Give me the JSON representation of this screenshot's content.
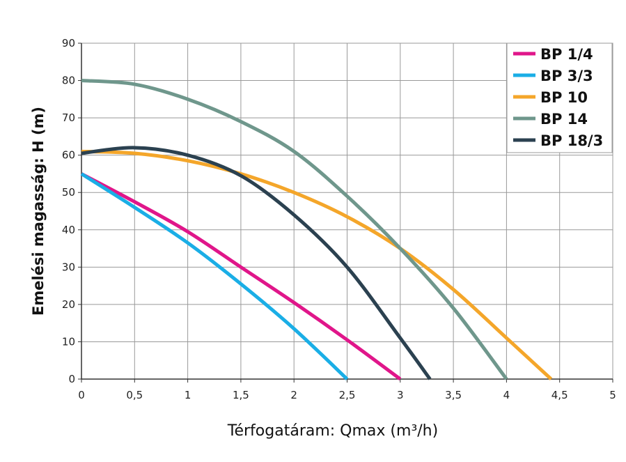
{
  "chart_data": {
    "type": "line",
    "title": "",
    "xlabel": "Térfogatáram: Qmax (m³/h)",
    "ylabel": "Emelési magasság: H (m)",
    "xlim": [
      0,
      5
    ],
    "ylim": [
      0,
      90
    ],
    "xticks": [
      "0",
      "0,5",
      "1",
      "1,5",
      "2",
      "2,5",
      "3",
      "3,5",
      "4",
      "4,5",
      "5"
    ],
    "yticks": [
      "0",
      "10",
      "20",
      "30",
      "40",
      "50",
      "60",
      "70",
      "80",
      "90"
    ],
    "grid": true,
    "legend_position": "top-right",
    "series": [
      {
        "name": "BP 1/4",
        "color": "#e0168a",
        "x": [
          0,
          0.5,
          1,
          1.5,
          2,
          2.5,
          3
        ],
        "y": [
          55,
          47.5,
          39.5,
          30,
          20.5,
          10.5,
          0
        ]
      },
      {
        "name": "BP 3/3",
        "color": "#1aaee6",
        "x": [
          0,
          0.5,
          1,
          1.5,
          2,
          2.5
        ],
        "y": [
          55,
          46,
          36.5,
          25.5,
          13.5,
          0
        ]
      },
      {
        "name": "BP 10",
        "color": "#f4a62a",
        "x": [
          0,
          0.5,
          1,
          1.5,
          2,
          2.5,
          3,
          3.5,
          4,
          4.42
        ],
        "y": [
          61,
          60.5,
          58.5,
          55,
          50,
          43.5,
          35,
          24,
          11,
          0
        ]
      },
      {
        "name": "BP 14",
        "color": "#6f978c",
        "x": [
          0,
          0.5,
          1,
          1.5,
          2,
          2.5,
          3,
          3.5,
          4
        ],
        "y": [
          80,
          79,
          75,
          69,
          61,
          49,
          35,
          19,
          0
        ]
      },
      {
        "name": "BP 18/3",
        "color": "#2b4150",
        "x": [
          0,
          0.5,
          1,
          1.5,
          2,
          2.5,
          3,
          3.28
        ],
        "y": [
          60.5,
          62,
          60,
          54.5,
          44,
          30,
          11,
          0
        ]
      }
    ]
  }
}
